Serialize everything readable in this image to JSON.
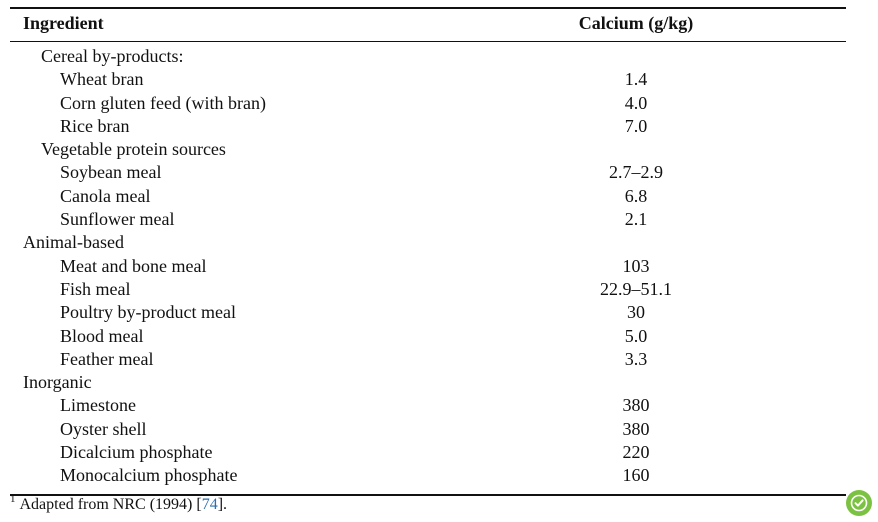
{
  "table": {
    "header": {
      "ingredient": "Ingredient",
      "calcium": "Calcium (g/kg)"
    },
    "rows": [
      {
        "level": 1,
        "name": "Cereal by-products:",
        "value": ""
      },
      {
        "level": 2,
        "name": "Wheat bran",
        "value": "1.4"
      },
      {
        "level": 2,
        "name": "Corn gluten feed (with bran)",
        "value": "4.0"
      },
      {
        "level": 2,
        "name": "Rice bran",
        "value": "7.0"
      },
      {
        "level": 1,
        "name": "Vegetable protein sources",
        "value": ""
      },
      {
        "level": 2,
        "name": "Soybean meal",
        "value": "2.7–2.9"
      },
      {
        "level": 2,
        "name": "Canola meal",
        "value": "6.8"
      },
      {
        "level": 2,
        "name": "Sunflower meal",
        "value": "2.1"
      },
      {
        "level": 0,
        "name": "Animal-based",
        "value": ""
      },
      {
        "level": 2,
        "name": "Meat and bone meal",
        "value": "103"
      },
      {
        "level": 2,
        "name": "Fish meal",
        "value": "22.9–51.1"
      },
      {
        "level": 2,
        "name": "Poultry by-product meal",
        "value": "30"
      },
      {
        "level": 2,
        "name": "Blood meal",
        "value": "5.0"
      },
      {
        "level": 2,
        "name": "Feather meal",
        "value": "3.3"
      },
      {
        "level": 0,
        "name": "Inorganic",
        "value": ""
      },
      {
        "level": 2,
        "name": "Limestone",
        "value": "380"
      },
      {
        "level": 2,
        "name": "Oyster shell",
        "value": "380"
      },
      {
        "level": 2,
        "name": "Dicalcium phosphate",
        "value": "220"
      },
      {
        "level": 2,
        "name": "Monocalcium phosphate",
        "value": "160"
      }
    ]
  },
  "footnote": {
    "marker": "1",
    "text_before": "Adapted from NRC (1994) [",
    "ref": "74",
    "text_after": "]."
  },
  "badge": {
    "icon": "check-update-icon",
    "color": "#7cc242"
  }
}
